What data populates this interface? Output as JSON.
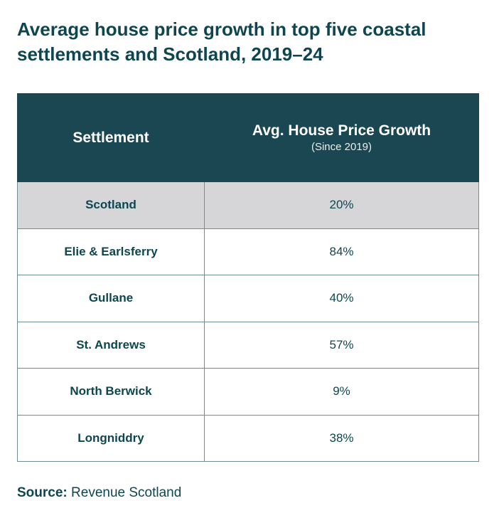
{
  "chart_data": {
    "type": "table",
    "title": "Average house price growth in top five coastal settlements and Scotland, 2019–24",
    "columns": [
      "Settlement",
      "Avg. House Price Growth"
    ],
    "column_subtitle": "(Since 2019)",
    "rows": [
      {
        "settlement": "Scotland",
        "growth": "20%",
        "value": 20,
        "highlight": true
      },
      {
        "settlement": "Elie & Earlsferry",
        "growth": "84%",
        "value": 84
      },
      {
        "settlement": "Gullane",
        "growth": "40%",
        "value": 40
      },
      {
        "settlement": "St. Andrews",
        "growth": "57%",
        "value": 57
      },
      {
        "settlement": "North Berwick",
        "growth": "9%",
        "value": 9
      },
      {
        "settlement": "Longniddry",
        "growth": "38%",
        "value": 38
      }
    ],
    "source_label": "Source:",
    "source": "Revenue Scotland"
  },
  "colors": {
    "header_bg": "#1b4752",
    "text": "#0e4650",
    "highlight_row": "#d6d6d8",
    "border": "#6f8d94"
  }
}
